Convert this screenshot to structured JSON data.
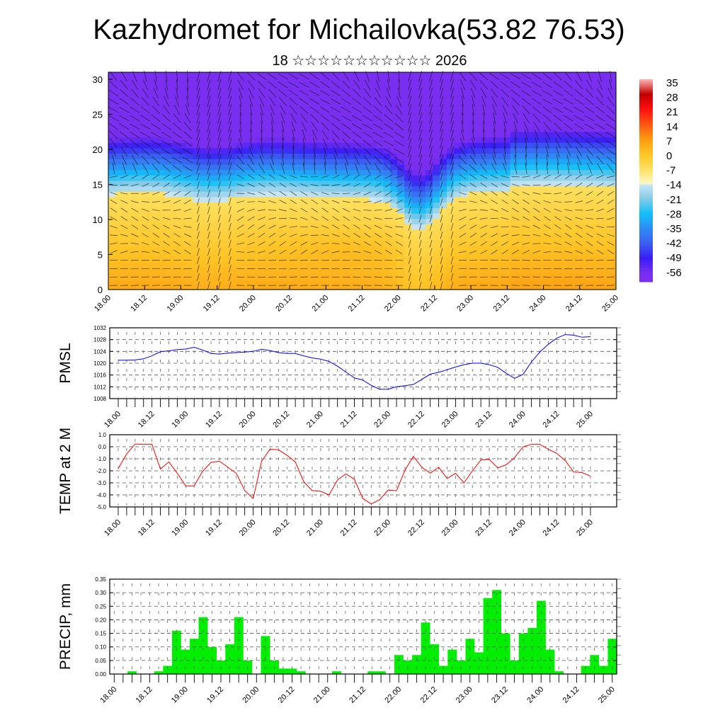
{
  "title": "Kazhydromet for Michailovka(53.82 76.53)",
  "subtitle": "18 ☆☆☆☆☆☆☆☆☆☆☆ 2026",
  "chart_data": [
    {
      "type": "heatmap",
      "title": "Temperature cross-section with wind",
      "xlabel": "",
      "ylabel": "",
      "x_tick_labels": [
        "18.00",
        "18.12",
        "19.00",
        "19.12",
        "20.00",
        "20.12",
        "21.00",
        "21.12",
        "22.00",
        "22.12",
        "23.00",
        "23.12",
        "24.00",
        "24.12",
        "25.00"
      ],
      "y_ticks": [
        0,
        5,
        10,
        15,
        20,
        25,
        30
      ],
      "ylim": [
        0,
        31
      ],
      "colorbar_labels": [
        "35",
        "28",
        "21",
        "14",
        "7",
        "0",
        "-7",
        "-14",
        "-21",
        "-28",
        "-35",
        "-42",
        "-49",
        "-56"
      ],
      "colorbar_colors": {
        "-56": "#7a2ff0",
        "-49": "#3a1ef5",
        "-42": "#3a5ef0",
        "-35": "#2f8cf5",
        "-28": "#10c0f8",
        "-21": "#86cbe8",
        "-14": "#cde6f2",
        "-13.9": "#fff8c4",
        "-7": "#ffe060",
        "0": "#ffc425",
        "7": "#ff9a10",
        "14": "#ff5512",
        "21": "#ff1010",
        "28": "#c00000",
        "35": "#ffb4b4"
      }
    },
    {
      "type": "line",
      "ylabel": "PMSL",
      "color": "#0000ff",
      "ylim": [
        1008,
        1032
      ],
      "y_ticks": [
        "1008",
        "1012",
        "1016",
        "1020",
        "1024",
        "1028",
        "1032"
      ],
      "x_tick_labels": [
        "18.00",
        "18.12",
        "19.00",
        "19.12",
        "20.00",
        "20.12",
        "21.00",
        "21.12",
        "22.00",
        "22.12",
        "23.00",
        "23.12",
        "24.00",
        "24.12",
        "25.00"
      ],
      "values": [
        1021,
        1021,
        1021.1,
        1021.5,
        1022.5,
        1023.9,
        1024.2,
        1024.6,
        1024.8,
        1025.4,
        1024.5,
        1023.3,
        1023.1,
        1023.4,
        1023.6,
        1023.8,
        1024,
        1024.7,
        1024.3,
        1023.6,
        1023.3,
        1023.3,
        1022.5,
        1021.8,
        1021.4,
        1020.6,
        1019,
        1017,
        1015,
        1014.3,
        1012.5,
        1011.2,
        1011.2,
        1012,
        1012.4,
        1012.8,
        1014.5,
        1016.3,
        1016.9,
        1017.8,
        1018.7,
        1019.5,
        1020,
        1020,
        1019.5,
        1018.6,
        1016.6,
        1014.9,
        1016.2,
        1020.4,
        1023.8,
        1026.4,
        1028.5,
        1029.7,
        1029.5,
        1028.8,
        1029
      ]
    },
    {
      "type": "line",
      "ylabel": "TEMP at 2 M",
      "color": "#ff0000",
      "ylim": [
        -5,
        1
      ],
      "y_ticks": [
        "-5.0",
        "-4.0",
        "-3.0",
        "-2.0",
        "-1.0",
        "0.0",
        "1.0"
      ],
      "x_tick_labels": [
        "18.00",
        "18.12",
        "19.00",
        "19.12",
        "20.00",
        "20.12",
        "21.00",
        "21.12",
        "22.00",
        "22.12",
        "23.00",
        "23.12",
        "24.00",
        "24.12",
        "25.00"
      ],
      "values": [
        -1.8,
        -0.6,
        0.23,
        0.2,
        0.2,
        -1.85,
        -1.25,
        -2.2,
        -3.25,
        -3.25,
        -2.05,
        -1.3,
        -1.2,
        -1.7,
        -2.2,
        -3.65,
        -4.3,
        -1.2,
        -0.2,
        -0.25,
        -0.7,
        -1.25,
        -2.9,
        -3.65,
        -3.7,
        -4.0,
        -2.75,
        -2.25,
        -2.7,
        -4.3,
        -4.75,
        -4.4,
        -3.6,
        -3.65,
        -1.95,
        -0.8,
        -1.7,
        -2.2,
        -1.7,
        -2.65,
        -2.2,
        -3.0,
        -2.0,
        -1.1,
        -1.05,
        -1.75,
        -1.5,
        -0.9,
        0,
        0.2,
        0.2,
        -0.2,
        -0.55,
        -1.15,
        -2.1,
        -2.15,
        -2.45
      ]
    },
    {
      "type": "bar",
      "ylabel": "PRECIP, mm",
      "color": "#00ee00",
      "ylim": [
        0,
        0.35
      ],
      "y_ticks": [
        "0.00",
        "0.05",
        "0.10",
        "0.15",
        "0.20",
        "0.25",
        "0.30",
        "0.35"
      ],
      "x_tick_labels": [
        "18.00",
        "18.12",
        "19.00",
        "19.12",
        "20.00",
        "20.12",
        "21.00",
        "21.12",
        "22.00",
        "22.12",
        "23.00",
        "23.12",
        "24.00",
        "24.12",
        "25.00"
      ],
      "values": [
        0,
        0,
        0.01,
        0,
        0,
        0.01,
        0.03,
        0.16,
        0.09,
        0.13,
        0.21,
        0.1,
        0.05,
        0.11,
        0.21,
        0.05,
        0,
        0.14,
        0.05,
        0.02,
        0.02,
        0.01,
        0,
        0,
        0,
        0.01,
        0,
        0,
        0,
        0.01,
        0.01,
        0,
        0.07,
        0.05,
        0.07,
        0.19,
        0.11,
        0.03,
        0.09,
        0.05,
        0.13,
        0.08,
        0.28,
        0.31,
        0.15,
        0.05,
        0.15,
        0.17,
        0.27,
        0.09,
        0.01,
        0,
        0,
        0.03,
        0.07,
        0.03,
        0.13
      ]
    }
  ]
}
